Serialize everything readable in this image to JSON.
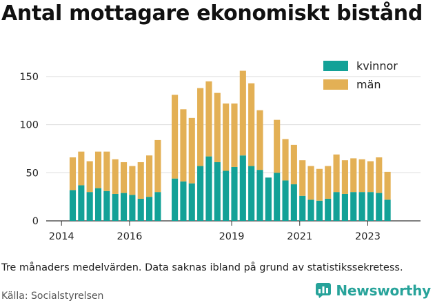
{
  "page": {
    "title": "Antal mottagare ekonomiskt bistånd",
    "note": "Tre månaders medelvärden. Data saknas ibland på grund av statistikssekretess.",
    "source": "Källa: Socialstyrelsen",
    "brand": "Newsworthy",
    "brand_icon": "newsworthy-logo-icon",
    "brand_color": "#27a39a"
  },
  "chart_data": {
    "type": "bar",
    "stacked": true,
    "title": "",
    "xlabel": "",
    "ylabel": "",
    "ylim": [
      0,
      165
    ],
    "yticks": [
      0,
      50,
      100,
      150
    ],
    "xlim": [
      2013.55,
      2024.55
    ],
    "xticks": [
      "2014",
      "2016",
      "2019",
      "2021",
      "2023"
    ],
    "xtick_positions": [
      2014.0,
      2016.0,
      2019.0,
      2021.0,
      2023.0
    ],
    "grid": "horizontal",
    "legend": "top-right",
    "x": [
      2014.33,
      2014.58,
      2014.83,
      2015.08,
      2015.33,
      2015.58,
      2015.83,
      2016.08,
      2016.33,
      2016.58,
      2016.83,
      2017.33,
      2017.58,
      2017.83,
      2018.08,
      2018.33,
      2018.58,
      2018.83,
      2019.08,
      2019.33,
      2019.58,
      2019.83,
      2020.08,
      2020.33,
      2020.58,
      2020.83,
      2021.08,
      2021.33,
      2021.58,
      2021.83,
      2022.08,
      2022.33,
      2022.58,
      2022.83,
      2023.08,
      2023.33,
      2023.58
    ],
    "series": [
      {
        "name": "kvinnor",
        "color": "#13a197",
        "values": [
          32,
          37,
          30,
          34,
          31,
          28,
          29,
          27,
          23,
          25,
          30,
          44,
          41,
          39,
          57,
          67,
          61,
          52,
          56,
          68,
          57,
          53,
          45,
          50,
          42,
          38,
          26,
          22,
          21,
          23,
          30,
          28,
          30,
          30,
          30,
          29,
          22
        ]
      },
      {
        "name": "män",
        "color": "#e3b055",
        "values": [
          34,
          35,
          32,
          38,
          41,
          36,
          32,
          30,
          38,
          43,
          54,
          87,
          75,
          68,
          81,
          78,
          72,
          70,
          66,
          88,
          86,
          62,
          0,
          55,
          43,
          41,
          37,
          35,
          33,
          34,
          39,
          35,
          35,
          34,
          32,
          37,
          29
        ]
      }
    ]
  }
}
